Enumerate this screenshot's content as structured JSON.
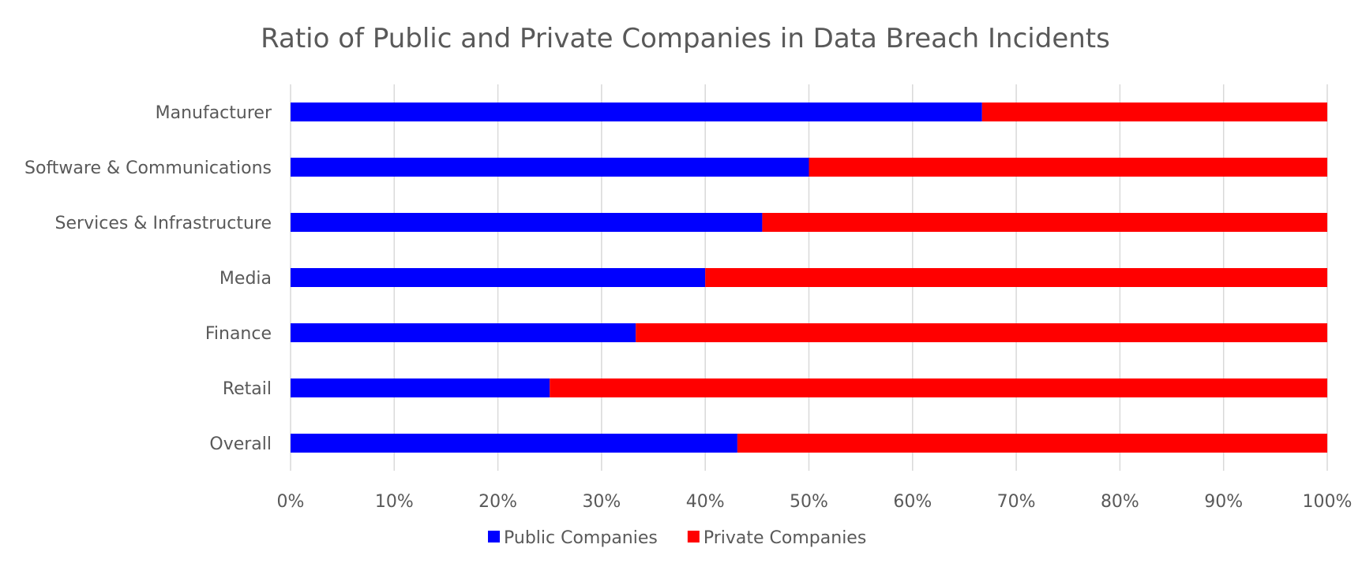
{
  "chart_data": {
    "type": "bar",
    "orientation": "horizontal",
    "stacked": "percent",
    "title": "Ratio of Public and Private Companies in Data Breach Incidents",
    "xlabel": "",
    "ylabel": "",
    "categories": [
      "Manufacturer",
      "Software & Communications",
      "Services & Infrastructure",
      "Media",
      "Finance",
      "Retail",
      "Overall"
    ],
    "series": [
      {
        "name": "Public Companies",
        "color": "#0000FF",
        "values": [
          66.7,
          50.0,
          45.5,
          40.0,
          33.3,
          25.0,
          43.1
        ]
      },
      {
        "name": "Private Companies",
        "color": "#FF0000",
        "values": [
          33.3,
          50.0,
          54.5,
          60.0,
          66.7,
          75.0,
          56.9
        ]
      }
    ],
    "xlim": [
      0,
      100
    ],
    "xticks": [
      "0%",
      "10%",
      "20%",
      "30%",
      "40%",
      "50%",
      "60%",
      "70%",
      "80%",
      "90%",
      "100%"
    ],
    "grid": true,
    "legend": "bottom-center"
  }
}
